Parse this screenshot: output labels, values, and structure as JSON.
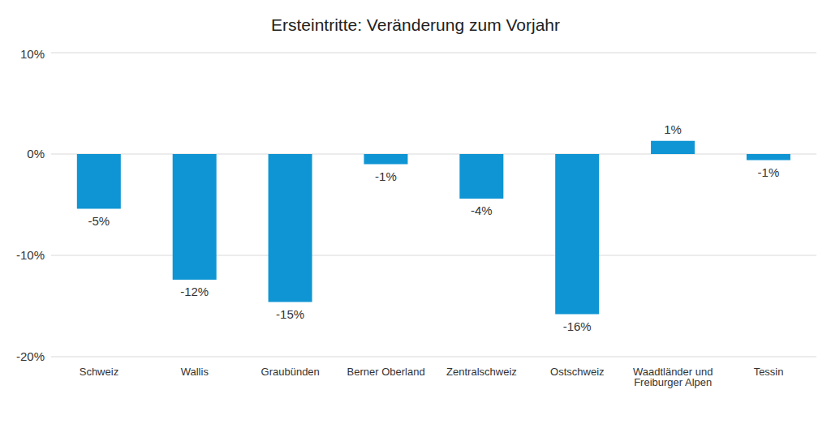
{
  "chart_data": {
    "type": "bar",
    "title": "Ersteintritte: Veränderung zum Vorjahr",
    "categories": [
      "Schweiz",
      "Wallis",
      "Graubünden",
      "Berner Oberland",
      "Zentralschweiz",
      "Ostschweiz",
      "Waadtländer und Freiburger Alpen",
      "Tessin"
    ],
    "values": [
      -5.4,
      -12.4,
      -14.6,
      -1.0,
      -4.4,
      -15.8,
      1.3,
      -0.6
    ],
    "value_labels": [
      "-5%",
      "-12%",
      "-15%",
      "-1%",
      "-4%",
      "-16%",
      "1%",
      "-1%"
    ],
    "color": "#0f95d3",
    "ylim": [
      -20,
      10
    ],
    "yticks": [
      {
        "value": -20,
        "label": "-20%"
      },
      {
        "value": -10,
        "label": "-10%"
      },
      {
        "value": 0,
        "label": "0%"
      },
      {
        "value": 10,
        "label": "10%"
      }
    ],
    "grid": true,
    "data_labels": true
  }
}
